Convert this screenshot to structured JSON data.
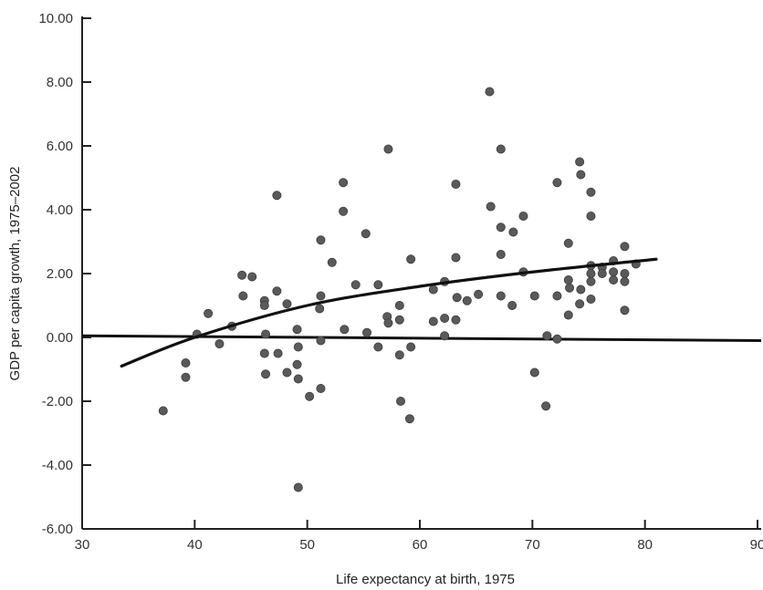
{
  "chart_data": {
    "type": "scatter",
    "title": "",
    "xlabel": "Life expectancy at birth, 1975",
    "ylabel": "GDP per capita growth, 1975–2002",
    "xlim": [
      30,
      90
    ],
    "ylim": [
      -6,
      10
    ],
    "x_ticks": [
      "30",
      "40",
      "50",
      "60",
      "70",
      "80",
      "90"
    ],
    "y_ticks": [
      "10.00",
      "8.00",
      "6.00",
      "4.00",
      "2.00",
      "0.00",
      "-2.00",
      "-4.00",
      "-6.00"
    ],
    "grid": false,
    "legend": "none",
    "colors": {
      "point": "#5a5a5a",
      "line": "#111111",
      "axis": "#222222"
    },
    "points": [
      [
        37.2,
        -2.3
      ],
      [
        39.2,
        -0.8
      ],
      [
        39.2,
        -1.25
      ],
      [
        40.2,
        0.1
      ],
      [
        41.2,
        0.75
      ],
      [
        42.2,
        -0.2
      ],
      [
        43.3,
        0.35
      ],
      [
        44.2,
        1.95
      ],
      [
        44.3,
        1.3
      ],
      [
        45.1,
        1.9
      ],
      [
        46.2,
        1.15
      ],
      [
        46.2,
        1.0
      ],
      [
        46.3,
        0.1
      ],
      [
        46.2,
        -0.5
      ],
      [
        46.3,
        -1.15
      ],
      [
        47.3,
        4.45
      ],
      [
        47.3,
        1.45
      ],
      [
        47.4,
        -0.5
      ],
      [
        48.2,
        1.05
      ],
      [
        48.2,
        -1.1
      ],
      [
        49.1,
        0.25
      ],
      [
        49.2,
        -0.3
      ],
      [
        49.1,
        -0.85
      ],
      [
        49.2,
        -1.3
      ],
      [
        49.2,
        -4.7
      ],
      [
        50.2,
        -1.85
      ],
      [
        51.2,
        3.05
      ],
      [
        51.2,
        1.3
      ],
      [
        51.1,
        0.9
      ],
      [
        51.2,
        -0.1
      ],
      [
        51.2,
        -1.6
      ],
      [
        52.2,
        2.35
      ],
      [
        53.2,
        4.85
      ],
      [
        53.2,
        3.95
      ],
      [
        53.3,
        0.25
      ],
      [
        54.3,
        1.65
      ],
      [
        55.2,
        3.25
      ],
      [
        55.3,
        0.15
      ],
      [
        56.3,
        1.65
      ],
      [
        56.3,
        -0.3
      ],
      [
        57.2,
        5.9
      ],
      [
        57.1,
        0.65
      ],
      [
        57.2,
        0.45
      ],
      [
        58.2,
        1.0
      ],
      [
        58.2,
        0.55
      ],
      [
        58.2,
        -0.55
      ],
      [
        58.3,
        -2.0
      ],
      [
        59.2,
        2.45
      ],
      [
        59.2,
        -0.3
      ],
      [
        59.1,
        -2.55
      ],
      [
        61.2,
        1.5
      ],
      [
        61.2,
        0.5
      ],
      [
        62.2,
        1.75
      ],
      [
        62.2,
        0.6
      ],
      [
        62.2,
        0.05
      ],
      [
        63.2,
        4.8
      ],
      [
        63.2,
        2.5
      ],
      [
        63.3,
        1.25
      ],
      [
        63.2,
        0.55
      ],
      [
        64.2,
        1.15
      ],
      [
        65.2,
        1.35
      ],
      [
        66.2,
        7.7
      ],
      [
        66.3,
        4.1
      ],
      [
        67.2,
        5.9
      ],
      [
        67.2,
        3.45
      ],
      [
        67.2,
        2.6
      ],
      [
        67.2,
        1.3
      ],
      [
        68.3,
        3.3
      ],
      [
        68.2,
        1.0
      ],
      [
        69.2,
        3.8
      ],
      [
        69.2,
        2.05
      ],
      [
        70.2,
        1.3
      ],
      [
        70.2,
        -1.1
      ],
      [
        71.3,
        0.05
      ],
      [
        71.2,
        -2.15
      ],
      [
        72.2,
        4.85
      ],
      [
        72.2,
        1.3
      ],
      [
        72.2,
        -0.05
      ],
      [
        73.2,
        2.95
      ],
      [
        73.2,
        1.8
      ],
      [
        73.3,
        1.55
      ],
      [
        73.2,
        0.7
      ],
      [
        74.2,
        5.5
      ],
      [
        74.3,
        5.1
      ],
      [
        74.3,
        1.5
      ],
      [
        74.2,
        1.05
      ],
      [
        75.2,
        4.55
      ],
      [
        75.2,
        3.8
      ],
      [
        75.2,
        2.25
      ],
      [
        75.2,
        2.0
      ],
      [
        75.2,
        1.75
      ],
      [
        75.2,
        1.2
      ],
      [
        76.2,
        2.2
      ],
      [
        76.2,
        2.0
      ],
      [
        77.2,
        2.4
      ],
      [
        77.2,
        2.05
      ],
      [
        77.2,
        1.8
      ],
      [
        78.2,
        2.85
      ],
      [
        78.2,
        2.0
      ],
      [
        78.2,
        1.75
      ],
      [
        78.2,
        0.85
      ],
      [
        79.2,
        2.3
      ]
    ],
    "fit_curve": [
      [
        33.5,
        -0.9
      ],
      [
        40,
        0.0
      ],
      [
        50,
        1.0
      ],
      [
        60,
        1.6
      ],
      [
        70,
        2.05
      ],
      [
        81,
        2.45
      ]
    ],
    "zero_line": [
      [
        30,
        0.05
      ],
      [
        93,
        -0.1
      ]
    ]
  }
}
